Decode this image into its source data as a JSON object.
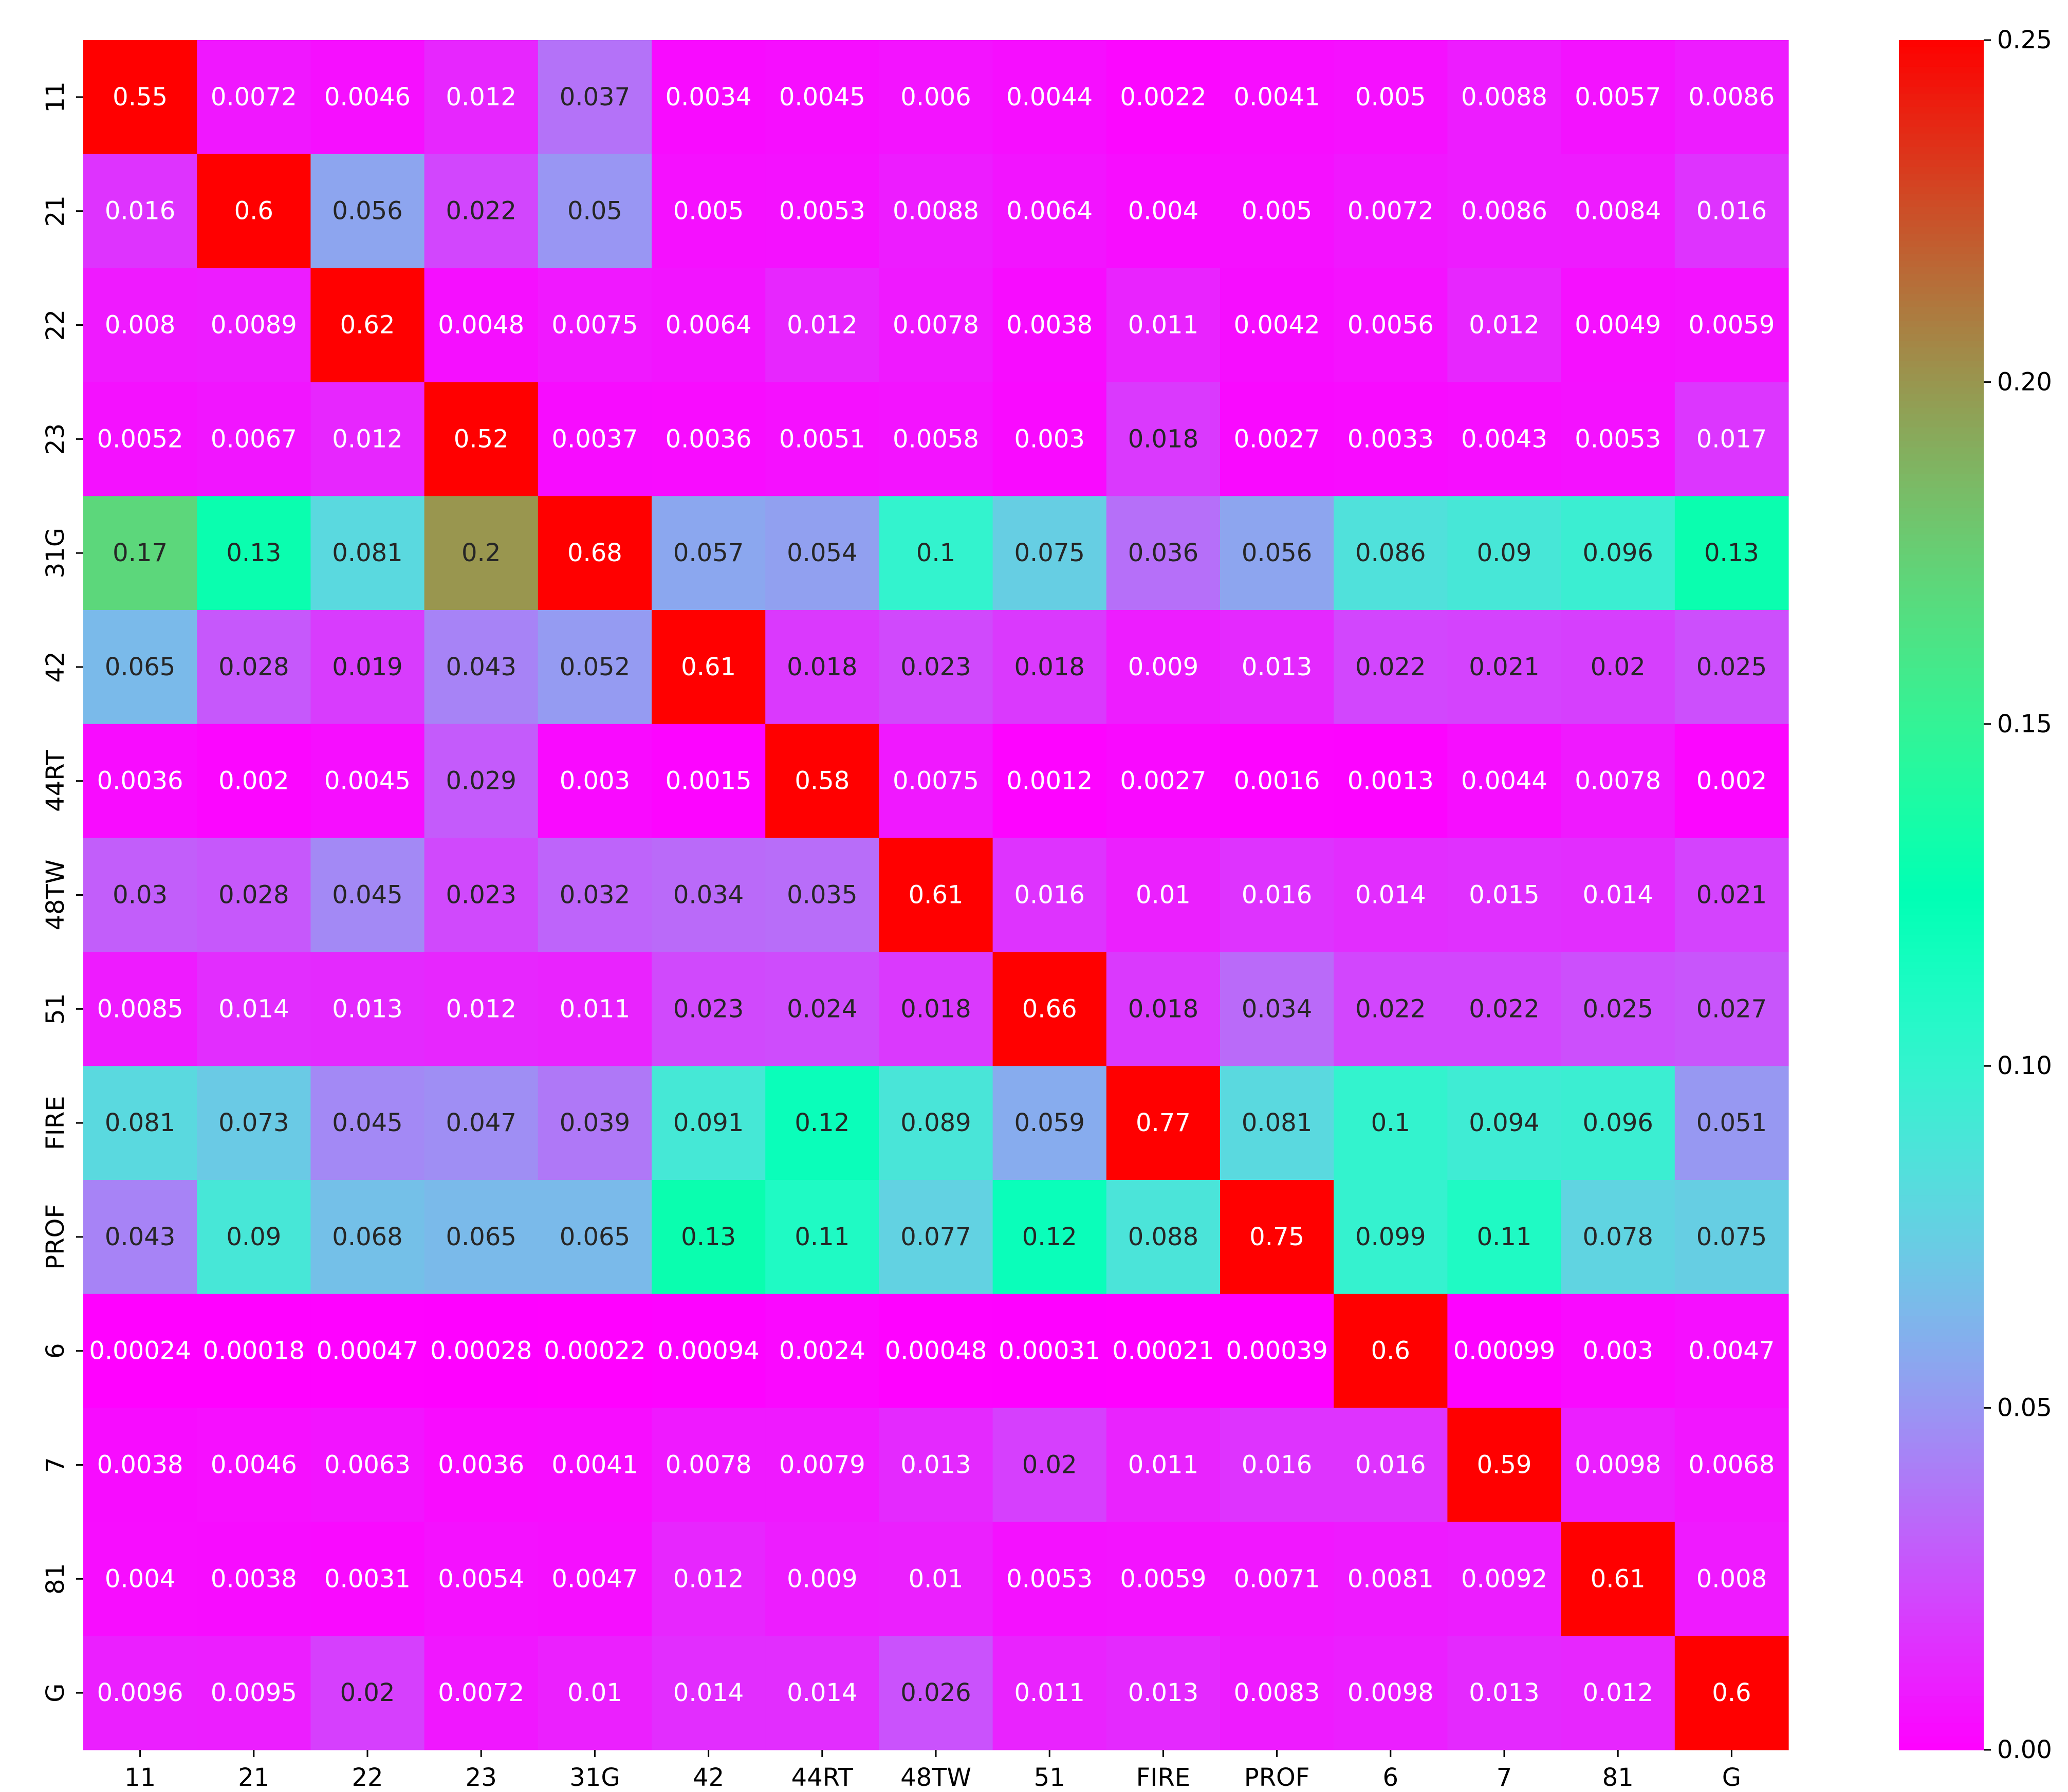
{
  "chart_data": {
    "type": "heatmap",
    "title": "",
    "xlabel": "",
    "ylabel": "",
    "x_categories": [
      "11",
      "21",
      "22",
      "23",
      "31G",
      "42",
      "44RT",
      "48TW",
      "51",
      "FIRE",
      "PROF",
      "6",
      "7",
      "81",
      "G"
    ],
    "y_categories": [
      "11",
      "21",
      "22",
      "23",
      "31G",
      "42",
      "44RT",
      "48TW",
      "51",
      "FIRE",
      "PROF",
      "6",
      "7",
      "81",
      "G"
    ],
    "values": [
      [
        0.55,
        0.0072,
        0.0046,
        0.012,
        0.037,
        0.0034,
        0.0045,
        0.006,
        0.0044,
        0.0022,
        0.0041,
        0.005,
        0.0088,
        0.0057,
        0.0086
      ],
      [
        0.016,
        0.6,
        0.056,
        0.022,
        0.05,
        0.005,
        0.0053,
        0.0088,
        0.0064,
        0.004,
        0.005,
        0.0072,
        0.0086,
        0.0084,
        0.016
      ],
      [
        0.008,
        0.0089,
        0.62,
        0.0048,
        0.0075,
        0.0064,
        0.012,
        0.0078,
        0.0038,
        0.011,
        0.0042,
        0.0056,
        0.012,
        0.0049,
        0.0059
      ],
      [
        0.0052,
        0.0067,
        0.012,
        0.52,
        0.0037,
        0.0036,
        0.0051,
        0.0058,
        0.003,
        0.018,
        0.0027,
        0.0033,
        0.0043,
        0.0053,
        0.017
      ],
      [
        0.17,
        0.13,
        0.081,
        0.2,
        0.68,
        0.057,
        0.054,
        0.1,
        0.075,
        0.036,
        0.056,
        0.086,
        0.09,
        0.096,
        0.13
      ],
      [
        0.065,
        0.028,
        0.019,
        0.043,
        0.052,
        0.61,
        0.018,
        0.023,
        0.018,
        0.009,
        0.013,
        0.022,
        0.021,
        0.02,
        0.025
      ],
      [
        0.0036,
        0.002,
        0.0045,
        0.029,
        0.003,
        0.0015,
        0.58,
        0.0075,
        0.0012,
        0.0027,
        0.0016,
        0.0013,
        0.0044,
        0.0078,
        0.002
      ],
      [
        0.03,
        0.028,
        0.045,
        0.023,
        0.032,
        0.034,
        0.035,
        0.61,
        0.016,
        0.01,
        0.016,
        0.014,
        0.015,
        0.014,
        0.021
      ],
      [
        0.0085,
        0.014,
        0.013,
        0.012,
        0.011,
        0.023,
        0.024,
        0.018,
        0.66,
        0.018,
        0.034,
        0.022,
        0.022,
        0.025,
        0.027
      ],
      [
        0.081,
        0.073,
        0.045,
        0.047,
        0.039,
        0.091,
        0.12,
        0.089,
        0.059,
        0.77,
        0.081,
        0.1,
        0.094,
        0.096,
        0.051
      ],
      [
        0.043,
        0.09,
        0.068,
        0.065,
        0.065,
        0.13,
        0.11,
        0.077,
        0.12,
        0.088,
        0.75,
        0.099,
        0.11,
        0.078,
        0.075
      ],
      [
        0.00024,
        0.00018,
        0.00047,
        0.00028,
        0.00022,
        0.00094,
        0.0024,
        0.00048,
        0.00031,
        0.00021,
        0.00039,
        0.6,
        0.00099,
        0.003,
        0.0047
      ],
      [
        0.0038,
        0.0046,
        0.0063,
        0.0036,
        0.0041,
        0.0078,
        0.0079,
        0.013,
        0.02,
        0.011,
        0.016,
        0.016,
        0.59,
        0.0098,
        0.0068
      ],
      [
        0.004,
        0.0038,
        0.0031,
        0.0054,
        0.0047,
        0.012,
        0.009,
        0.01,
        0.0053,
        0.0059,
        0.0071,
        0.0081,
        0.0092,
        0.61,
        0.008
      ],
      [
        0.0096,
        0.0095,
        0.02,
        0.0072,
        0.01,
        0.014,
        0.014,
        0.026,
        0.011,
        0.013,
        0.0083,
        0.0098,
        0.013,
        0.012,
        0.6
      ]
    ],
    "value_labels": [
      [
        "0.55",
        "0.0072",
        "0.0046",
        "0.012",
        "0.037",
        "0.0034",
        "0.0045",
        "0.006",
        "0.0044",
        "0.0022",
        "0.0041",
        "0.005",
        "0.0088",
        "0.0057",
        "0.0086"
      ],
      [
        "0.016",
        "0.6",
        "0.056",
        "0.022",
        "0.05",
        "0.005",
        "0.0053",
        "0.0088",
        "0.0064",
        "0.004",
        "0.005",
        "0.0072",
        "0.0086",
        "0.0084",
        "0.016"
      ],
      [
        "0.008",
        "0.0089",
        "0.62",
        "0.0048",
        "0.0075",
        "0.0064",
        "0.012",
        "0.0078",
        "0.0038",
        "0.011",
        "0.0042",
        "0.0056",
        "0.012",
        "0.0049",
        "0.0059"
      ],
      [
        "0.0052",
        "0.0067",
        "0.012",
        "0.52",
        "0.0037",
        "0.0036",
        "0.0051",
        "0.0058",
        "0.003",
        "0.018",
        "0.0027",
        "0.0033",
        "0.0043",
        "0.0053",
        "0.017"
      ],
      [
        "0.17",
        "0.13",
        "0.081",
        "0.2",
        "0.68",
        "0.057",
        "0.054",
        "0.1",
        "0.075",
        "0.036",
        "0.056",
        "0.086",
        "0.09",
        "0.096",
        "0.13"
      ],
      [
        "0.065",
        "0.028",
        "0.019",
        "0.043",
        "0.052",
        "0.61",
        "0.018",
        "0.023",
        "0.018",
        "0.009",
        "0.013",
        "0.022",
        "0.021",
        "0.02",
        "0.025"
      ],
      [
        "0.0036",
        "0.002",
        "0.0045",
        "0.029",
        "0.003",
        "0.0015",
        "0.58",
        "0.0075",
        "0.0012",
        "0.0027",
        "0.0016",
        "0.0013",
        "0.0044",
        "0.0078",
        "0.002"
      ],
      [
        "0.03",
        "0.028",
        "0.045",
        "0.023",
        "0.032",
        "0.034",
        "0.035",
        "0.61",
        "0.016",
        "0.01",
        "0.016",
        "0.014",
        "0.015",
        "0.014",
        "0.021"
      ],
      [
        "0.0085",
        "0.014",
        "0.013",
        "0.012",
        "0.011",
        "0.023",
        "0.024",
        "0.018",
        "0.66",
        "0.018",
        "0.034",
        "0.022",
        "0.022",
        "0.025",
        "0.027"
      ],
      [
        "0.081",
        "0.073",
        "0.045",
        "0.047",
        "0.039",
        "0.091",
        "0.12",
        "0.089",
        "0.059",
        "0.77",
        "0.081",
        "0.1",
        "0.094",
        "0.096",
        "0.051"
      ],
      [
        "0.043",
        "0.09",
        "0.068",
        "0.065",
        "0.065",
        "0.13",
        "0.11",
        "0.077",
        "0.12",
        "0.088",
        "0.75",
        "0.099",
        "0.11",
        "0.078",
        "0.075"
      ],
      [
        "0.00024",
        "0.00018",
        "0.00047",
        "0.00028",
        "0.00022",
        "0.00094",
        "0.0024",
        "0.00048",
        "0.00031",
        "0.00021",
        "0.00039",
        "0.6",
        "0.00099",
        "0.003",
        "0.0047"
      ],
      [
        "0.0038",
        "0.0046",
        "0.0063",
        "0.0036",
        "0.0041",
        "0.0078",
        "0.0079",
        "0.013",
        "0.02",
        "0.011",
        "0.016",
        "0.016",
        "0.59",
        "0.0098",
        "0.0068"
      ],
      [
        "0.004",
        "0.0038",
        "0.0031",
        "0.0054",
        "0.0047",
        "0.012",
        "0.009",
        "0.01",
        "0.0053",
        "0.0059",
        "0.0071",
        "0.0081",
        "0.0092",
        "0.61",
        "0.008"
      ],
      [
        "0.0096",
        "0.0095",
        "0.02",
        "0.0072",
        "0.01",
        "0.014",
        "0.014",
        "0.026",
        "0.011",
        "0.013",
        "0.0083",
        "0.0098",
        "0.013",
        "0.012",
        "0.6"
      ]
    ],
    "colormap": "rainbow",
    "vmin": 0,
    "vmax": 0.25,
    "colorbar_ticks": [
      "0.00",
      "0.05",
      "0.10",
      "0.15",
      "0.20",
      "0.25"
    ],
    "grid": false,
    "legend": "colorbar-right"
  }
}
